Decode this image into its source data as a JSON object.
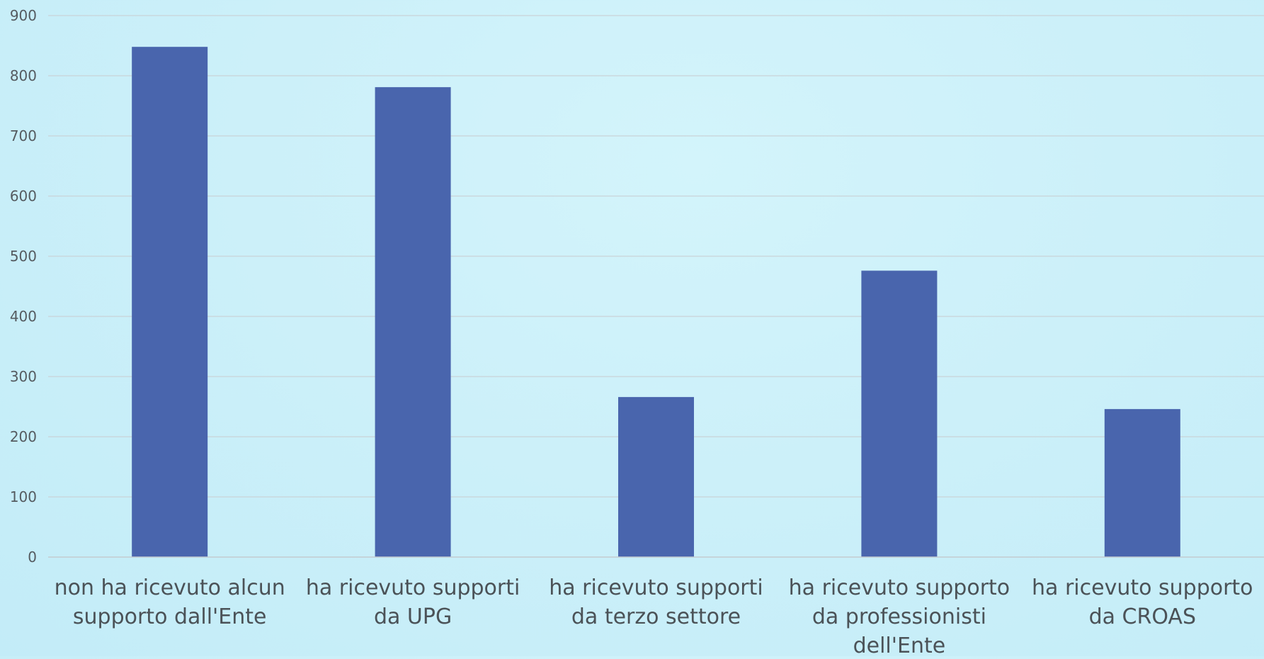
{
  "chart_data": {
    "type": "bar",
    "categories": [
      [
        "non ha ricevuto alcun",
        "supporto dall'Ente"
      ],
      [
        "ha ricevuto supporti",
        "da UPG"
      ],
      [
        "ha ricevuto supporti",
        "da terzo settore"
      ],
      [
        "ha ricevuto supporto",
        "da professionisti",
        "dell'Ente"
      ],
      [
        "ha ricevuto supporto",
        "da CROAS"
      ]
    ],
    "values": [
      848,
      781,
      266,
      476,
      246
    ],
    "title": "",
    "xlabel": "",
    "ylabel": "",
    "ylim": [
      0,
      900
    ],
    "yticks": [
      0,
      100,
      200,
      300,
      400,
      500,
      600,
      700,
      800,
      900
    ],
    "grid": true,
    "legend": "none",
    "colors": {
      "bar": "#4965ad",
      "grid": "#c9d3d8",
      "axis": "#c3ccd0"
    }
  }
}
